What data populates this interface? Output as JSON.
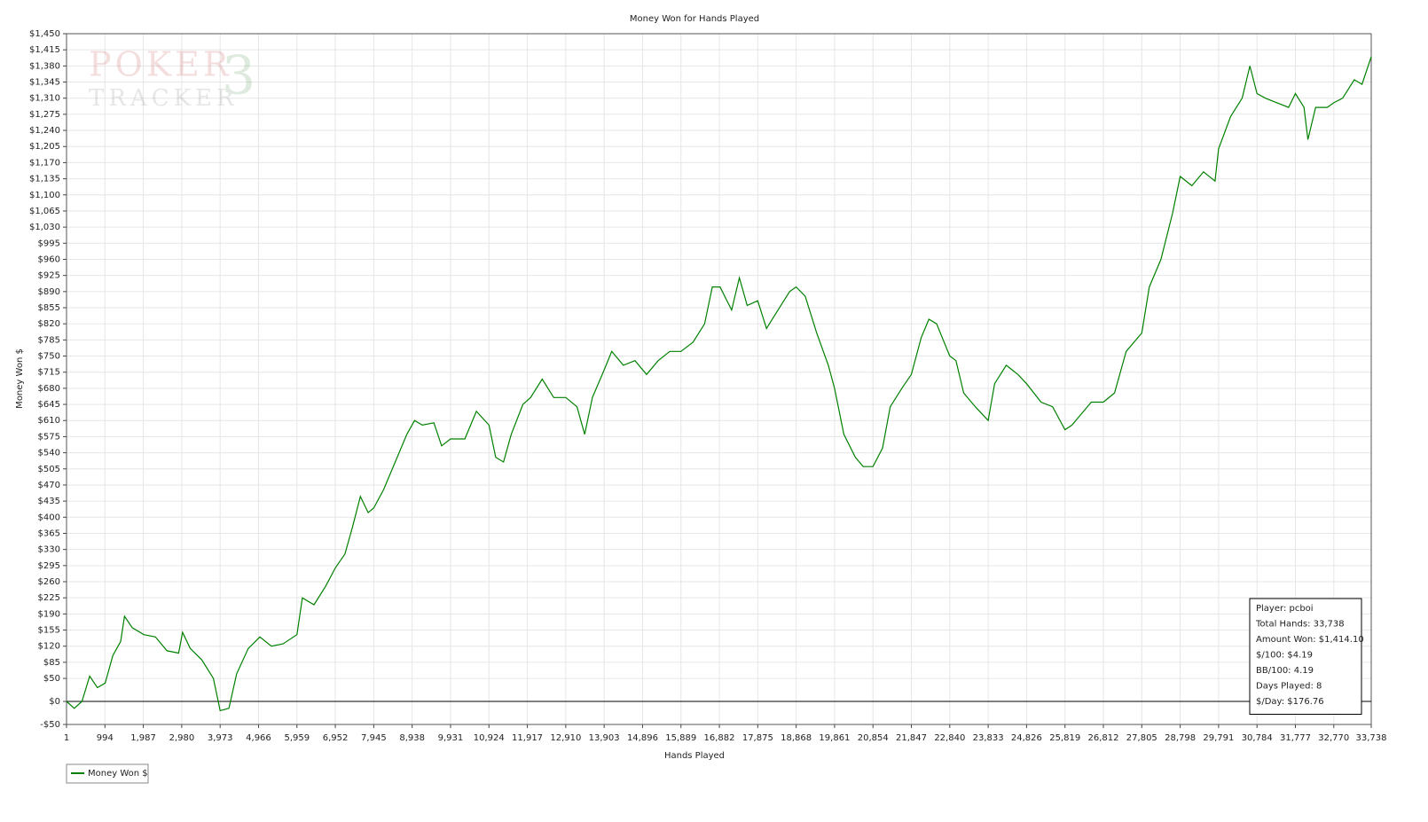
{
  "chart_data": {
    "type": "line",
    "title": "Money Won for Hands Played",
    "x_label": "Hands Played",
    "y_label": "Money Won $",
    "xlim": [
      1,
      33738
    ],
    "ylim": [
      -50,
      1450
    ],
    "grid": true,
    "reference_line": 0,
    "legend": "bottom-left",
    "xticks": [
      1,
      994,
      {
        "value": 1987,
        "label": "1,987"
      },
      {
        "value": 2980,
        "label": "2,980"
      },
      {
        "value": 3973,
        "label": "3,973"
      },
      {
        "value": 4966,
        "label": "4,966"
      },
      {
        "value": 5959,
        "label": "5,959"
      },
      {
        "value": 6952,
        "label": "6,952"
      },
      {
        "value": 7945,
        "label": "7,945"
      },
      {
        "value": 8938,
        "label": "8,938"
      },
      {
        "value": 9931,
        "label": "9,931"
      },
      {
        "value": 10924,
        "label": "10,924"
      },
      {
        "value": 11917,
        "label": "11,917"
      },
      {
        "value": 12910,
        "label": "12,910"
      },
      {
        "value": 13903,
        "label": "13,903"
      },
      {
        "value": 14896,
        "label": "14,896"
      },
      {
        "value": 15889,
        "label": "15,889"
      },
      {
        "value": 16882,
        "label": "16,882"
      },
      {
        "value": 17875,
        "label": "17,875"
      },
      {
        "value": 18868,
        "label": "18,868"
      },
      {
        "value": 19861,
        "label": "19,861"
      },
      {
        "value": 20854,
        "label": "20,854"
      },
      {
        "value": 21847,
        "label": "21,847"
      },
      {
        "value": 22840,
        "label": "22,840"
      },
      {
        "value": 23833,
        "label": "23,833"
      },
      {
        "value": 24826,
        "label": "24,826"
      },
      {
        "value": 25819,
        "label": "25,819"
      },
      {
        "value": 26812,
        "label": "26,812"
      },
      {
        "value": 27805,
        "label": "27,805"
      },
      {
        "value": 28798,
        "label": "28,798"
      },
      {
        "value": 29791,
        "label": "29,791"
      },
      {
        "value": 30784,
        "label": "30,784"
      },
      {
        "value": 31777,
        "label": "31,777"
      },
      {
        "value": 32770,
        "label": "32,770"
      },
      {
        "value": 33738,
        "label": "33,738"
      }
    ],
    "yticks": [
      {
        "value": -50,
        "label": "-$50"
      },
      {
        "value": 0,
        "label": "$0"
      },
      {
        "value": 50,
        "label": "$50"
      },
      {
        "value": 85,
        "label": "$85"
      },
      {
        "value": 120,
        "label": "$120"
      },
      {
        "value": 155,
        "label": "$155"
      },
      {
        "value": 190,
        "label": "$190"
      },
      {
        "value": 225,
        "label": "$225"
      },
      {
        "value": 260,
        "label": "$260"
      },
      {
        "value": 295,
        "label": "$295"
      },
      {
        "value": 330,
        "label": "$330"
      },
      {
        "value": 365,
        "label": "$365"
      },
      {
        "value": 400,
        "label": "$400"
      },
      {
        "value": 435,
        "label": "$435"
      },
      {
        "value": 470,
        "label": "$470"
      },
      {
        "value": 505,
        "label": "$505"
      },
      {
        "value": 540,
        "label": "$540"
      },
      {
        "value": 575,
        "label": "$575"
      },
      {
        "value": 610,
        "label": "$610"
      },
      {
        "value": 645,
        "label": "$645"
      },
      {
        "value": 680,
        "label": "$680"
      },
      {
        "value": 715,
        "label": "$715"
      },
      {
        "value": 750,
        "label": "$750"
      },
      {
        "value": 785,
        "label": "$785"
      },
      {
        "value": 820,
        "label": "$820"
      },
      {
        "value": 855,
        "label": "$855"
      },
      {
        "value": 890,
        "label": "$890"
      },
      {
        "value": 925,
        "label": "$925"
      },
      {
        "value": 960,
        "label": "$960"
      },
      {
        "value": 995,
        "label": "$995"
      },
      {
        "value": 1030,
        "label": "$1,030"
      },
      {
        "value": 1065,
        "label": "$1,065"
      },
      {
        "value": 1100,
        "label": "$1,100"
      },
      {
        "value": 1135,
        "label": "$1,135"
      },
      {
        "value": 1170,
        "label": "$1,170"
      },
      {
        "value": 1205,
        "label": "$1,205"
      },
      {
        "value": 1240,
        "label": "$1,240"
      },
      {
        "value": 1275,
        "label": "$1,275"
      },
      {
        "value": 1310,
        "label": "$1,310"
      },
      {
        "value": 1345,
        "label": "$1,345"
      },
      {
        "value": 1380,
        "label": "$1,380"
      },
      {
        "value": 1415,
        "label": "$1,415"
      },
      {
        "value": 1450,
        "label": "$1,450"
      }
    ],
    "x": [
      1,
      200,
      400,
      600,
      800,
      1000,
      1200,
      1400,
      1500,
      1700,
      2000,
      2300,
      2600,
      2900,
      3000,
      3200,
      3500,
      3800,
      3973,
      4200,
      4400,
      4700,
      5000,
      5300,
      5600,
      5959,
      6100,
      6400,
      6700,
      6952,
      7200,
      7400,
      7600,
      7800,
      7945,
      8200,
      8500,
      8800,
      9000,
      9200,
      9500,
      9700,
      9931,
      10300,
      10600,
      10924,
      11100,
      11300,
      11500,
      11800,
      12000,
      12300,
      12600,
      12910,
      13200,
      13400,
      13600,
      13903,
      14100,
      14400,
      14700,
      15000,
      15300,
      15600,
      15889,
      16200,
      16500,
      16700,
      16900,
      17200,
      17400,
      17600,
      17875,
      18100,
      18400,
      18700,
      18868,
      19100,
      19400,
      19700,
      19861,
      20100,
      20400,
      20600,
      20854,
      21100,
      21300,
      21600,
      21847,
      22100,
      22300,
      22500,
      22840,
      23000,
      23200,
      23500,
      23833,
      24000,
      24300,
      24600,
      24826,
      25200,
      25500,
      25819,
      26000,
      26200,
      26500,
      26812,
      27100,
      27400,
      27805,
      28000,
      28300,
      28600,
      28798,
      29100,
      29400,
      29700,
      29791,
      30100,
      30400,
      30600,
      30784,
      31000,
      31300,
      31600,
      31777,
      32000,
      32100,
      32300,
      32600,
      32770,
      33000,
      33300,
      33500,
      33738
    ],
    "series": [
      {
        "name": "Money Won $",
        "color": "#008000",
        "values": [
          0,
          -15,
          0,
          55,
          30,
          40,
          100,
          130,
          185,
          160,
          145,
          140,
          110,
          105,
          150,
          115,
          90,
          50,
          -20,
          -15,
          60,
          115,
          140,
          120,
          125,
          145,
          225,
          210,
          250,
          290,
          320,
          380,
          445,
          410,
          420,
          460,
          520,
          580,
          610,
          600,
          605,
          555,
          570,
          570,
          630,
          600,
          530,
          520,
          580,
          645,
          660,
          700,
          660,
          660,
          640,
          580,
          660,
          720,
          760,
          730,
          740,
          710,
          740,
          760,
          760,
          780,
          820,
          900,
          900,
          850,
          920,
          860,
          870,
          810,
          850,
          890,
          900,
          880,
          800,
          730,
          680,
          580,
          530,
          510,
          510,
          550,
          640,
          680,
          710,
          790,
          830,
          820,
          750,
          740,
          670,
          640,
          610,
          690,
          730,
          710,
          690,
          650,
          640,
          590,
          600,
          620,
          650,
          650,
          670,
          760,
          800,
          900,
          960,
          1060,
          1140,
          1120,
          1150,
          1130,
          1200,
          1270,
          1310,
          1380,
          1320,
          1310,
          1300,
          1290,
          1320,
          1290,
          1220,
          1290,
          1290,
          1300,
          1310,
          1350,
          1340,
          1400
        ]
      }
    ]
  },
  "watermark": {
    "line1": "POKER",
    "line2": "TRACKER",
    "number": "3"
  },
  "info_box": [
    "Player: pcboi",
    "Total Hands: 33,738",
    "Amount Won: $1,414.10",
    "$/100: $4.19",
    "BB/100: 4.19",
    "Days Played: 8",
    "$/Day: $176.76"
  ]
}
